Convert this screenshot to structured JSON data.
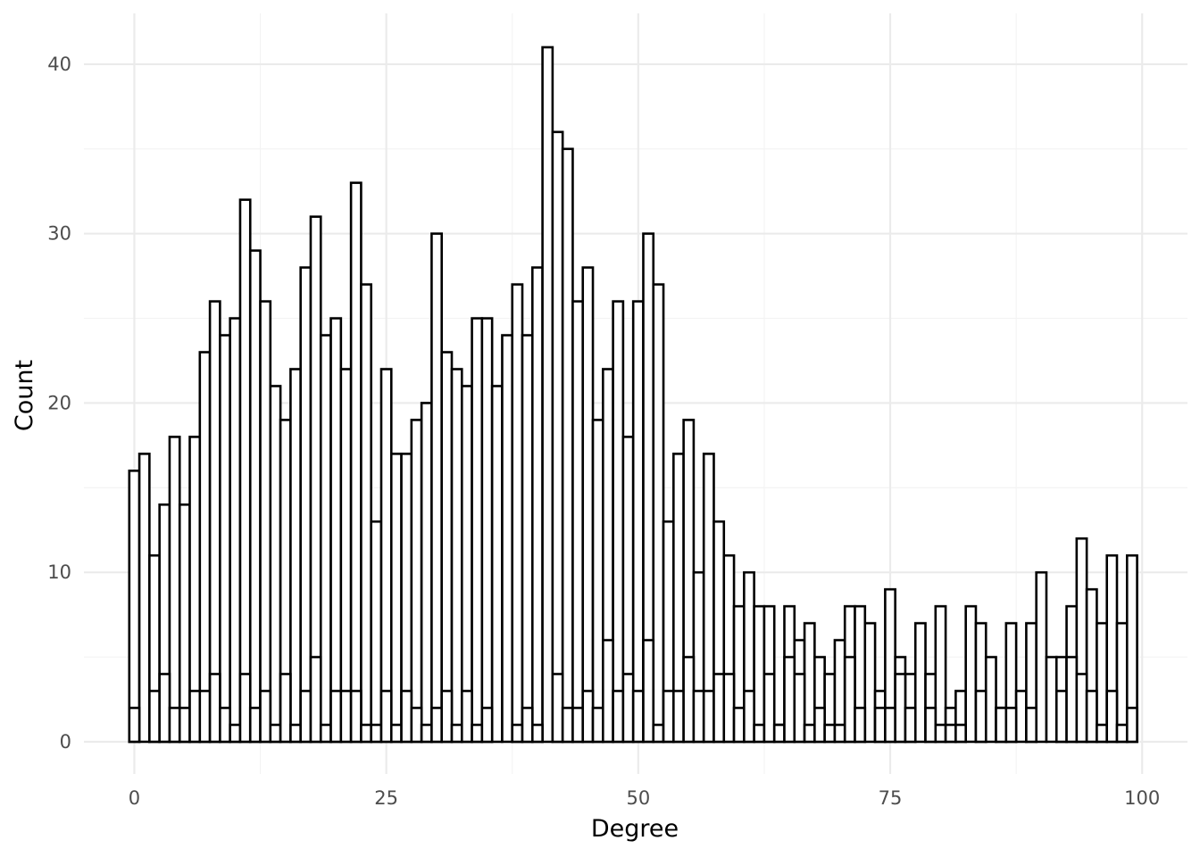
{
  "chart_data": {
    "type": "bar",
    "title": "",
    "xlabel": "Degree",
    "ylabel": "Count",
    "xlim": [
      -5,
      104.5
    ],
    "ylim": [
      -1.9,
      43.0
    ],
    "x_ticks": [
      0,
      25,
      50,
      75,
      100
    ],
    "x_tick_labels": [
      "0",
      "25",
      "50",
      "75",
      "100"
    ],
    "y_ticks": [
      0,
      10,
      20,
      30,
      40
    ],
    "y_tick_labels": [
      "0",
      "10",
      "20",
      "30",
      "40"
    ],
    "grid": true,
    "legend": "none",
    "bar_fill": "#ffffff",
    "bar_outline": "#000000",
    "series": [
      {
        "x": [
          0,
          1,
          2,
          3,
          4,
          5,
          6,
          7,
          8,
          9,
          10,
          11,
          12,
          13,
          14,
          15,
          16,
          17,
          18,
          19,
          20,
          21,
          22,
          23,
          24,
          25,
          26,
          27,
          28,
          29,
          30,
          31,
          32,
          33,
          34,
          35,
          36,
          37,
          38,
          39,
          40,
          41,
          42,
          43,
          44,
          45,
          46,
          47,
          48,
          49,
          50,
          51,
          52,
          53,
          54,
          55,
          56,
          57,
          58,
          59,
          60,
          61,
          62,
          63,
          64,
          65,
          66,
          67,
          68,
          69,
          70,
          71,
          72,
          73,
          74,
          75,
          76,
          77,
          78,
          79,
          80,
          81,
          82,
          83,
          84,
          85,
          86,
          87,
          88,
          89,
          90,
          91,
          92,
          93,
          94,
          95,
          96,
          97,
          98,
          99
        ],
        "values": [
          16,
          17,
          11,
          14,
          18,
          14,
          18,
          23,
          26,
          24,
          25,
          32,
          29,
          26,
          21,
          19,
          22,
          28,
          31,
          24,
          25,
          22,
          33,
          27,
          13,
          22,
          17,
          17,
          19,
          20,
          30,
          23,
          22,
          21,
          25,
          25,
          21,
          24,
          27,
          24,
          28,
          41,
          36,
          35,
          26,
          28,
          19,
          22,
          26,
          18,
          26,
          30,
          27,
          13,
          17,
          19,
          10,
          17,
          13,
          11,
          8,
          10,
          8,
          8,
          1,
          8,
          6,
          7,
          5,
          4,
          6,
          8,
          8,
          7,
          3,
          9,
          5,
          4,
          7,
          4,
          8,
          2,
          3,
          8,
          7,
          5,
          2,
          7,
          3,
          7,
          10,
          5,
          5,
          8,
          12,
          9,
          7,
          11,
          7,
          11
        ]
      },
      {
        "x": [
          0,
          1,
          2,
          3,
          4,
          5,
          6,
          7,
          8,
          9,
          10,
          11,
          12,
          13,
          14,
          15,
          16,
          17,
          18,
          19,
          20,
          21,
          22,
          23,
          24,
          25,
          26,
          27,
          28,
          29,
          30,
          31,
          32,
          33,
          34,
          35,
          36,
          37,
          38,
          39,
          40,
          41,
          42,
          43,
          44,
          45,
          46,
          47,
          48,
          49,
          50,
          51,
          52,
          53,
          54,
          55,
          56,
          57,
          58,
          59,
          60,
          61,
          62,
          63,
          64,
          65,
          66,
          67,
          68,
          69,
          70,
          71,
          72,
          73,
          74,
          75,
          76,
          77,
          78,
          79,
          80,
          81,
          82,
          83,
          84,
          85,
          86,
          87,
          88,
          89,
          90,
          91,
          92,
          93,
          94,
          95,
          96,
          97,
          98,
          99
        ],
        "values": [
          2,
          0,
          3,
          4,
          2,
          2,
          3,
          3,
          4,
          2,
          1,
          4,
          2,
          3,
          1,
          4,
          1,
          3,
          5,
          1,
          3,
          3,
          3,
          1,
          1,
          3,
          1,
          3,
          2,
          1,
          2,
          3,
          1,
          3,
          1,
          2,
          0,
          0,
          1,
          2,
          1,
          0,
          4,
          2,
          2,
          3,
          2,
          6,
          3,
          4,
          3,
          6,
          1,
          3,
          3,
          5,
          3,
          3,
          4,
          4,
          2,
          3,
          1,
          4,
          1,
          5,
          4,
          1,
          2,
          1,
          1,
          5,
          2,
          0,
          2,
          2,
          4,
          2,
          0,
          2,
          1,
          1,
          1,
          0,
          3,
          0,
          2,
          2,
          0,
          2,
          0,
          0,
          3,
          5,
          4,
          3,
          1,
          3,
          1,
          2
        ]
      }
    ]
  }
}
